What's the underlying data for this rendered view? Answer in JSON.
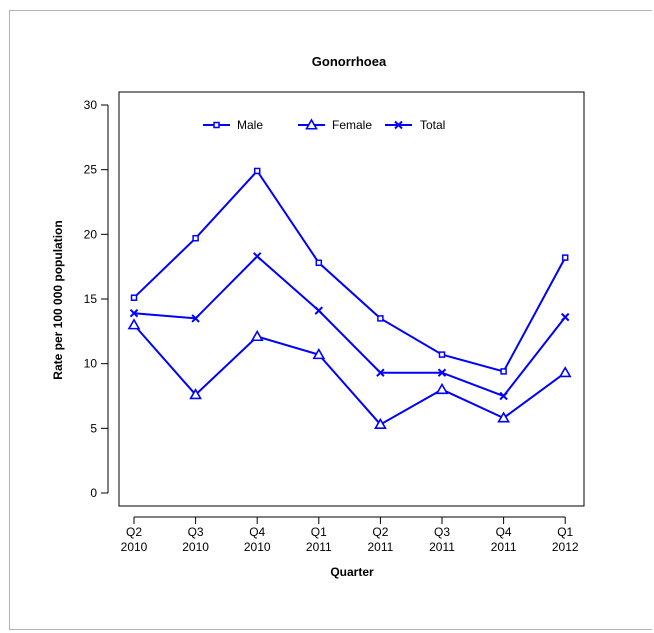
{
  "chart_data": {
    "type": "line",
    "title": "Gonorrhoea",
    "xlabel": "Quarter",
    "ylabel": "Rate per 100 000 population",
    "categories": [
      [
        "Q2",
        "2010"
      ],
      [
        "Q3",
        "2010"
      ],
      [
        "Q4",
        "2010"
      ],
      [
        "Q1",
        "2011"
      ],
      [
        "Q2",
        "2011"
      ],
      [
        "Q3",
        "2011"
      ],
      [
        "Q4",
        "2011"
      ],
      [
        "Q1",
        "2012"
      ]
    ],
    "yticks": [
      0,
      5,
      10,
      15,
      20,
      25,
      30
    ],
    "ylim": [
      0,
      30
    ],
    "grid": false,
    "legend_position": "top",
    "series": [
      {
        "name": "Male",
        "marker": "square",
        "values": [
          15.1,
          19.7,
          24.9,
          17.8,
          13.5,
          10.7,
          9.4,
          18.2
        ]
      },
      {
        "name": "Female",
        "marker": "triangle",
        "values": [
          13.0,
          7.6,
          12.1,
          10.7,
          5.3,
          8.0,
          5.8,
          9.3
        ]
      },
      {
        "name": "Total",
        "marker": "cross",
        "values": [
          13.9,
          13.5,
          18.3,
          14.1,
          9.3,
          9.3,
          7.5,
          13.6
        ]
      }
    ],
    "line_color": "#0000ff"
  }
}
